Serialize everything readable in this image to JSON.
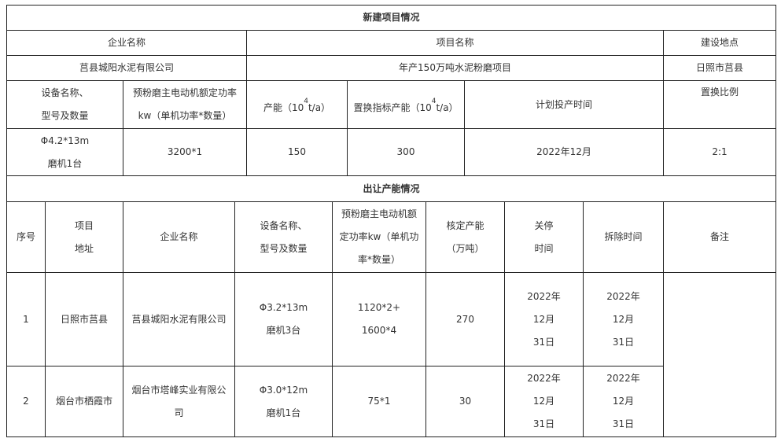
{
  "new_project": {
    "title": "新建项目情况",
    "headers": {
      "company": "企业名称",
      "project": "项目名称",
      "location": "建设地点"
    },
    "values": {
      "company": "莒县城阳水泥有限公司",
      "project": "年产150万吨水泥粉磨项目",
      "location": "日照市莒县"
    },
    "detail_headers": {
      "equipment_1": "设备名称、",
      "equipment_2": "型号及数量",
      "power_1": "预粉磨主电动机额定功率",
      "power_2": "kw（单机功率*数量）",
      "capacity_pre": "产能（10",
      "capacity_exp": "4",
      "capacity_post": "t/a）",
      "replace_pre": "置换指标产能（10",
      "replace_exp": "4",
      "replace_post": "t/a）",
      "plan_time": "计划投产时间",
      "ratio": "置换比例"
    },
    "detail_values": {
      "equipment_1": "Φ4.2*13m",
      "equipment_2": "磨机1台",
      "power": "3200*1",
      "capacity": "150",
      "replace": "300",
      "plan_time": "2022年12月",
      "ratio": "2:1"
    }
  },
  "transfer": {
    "title": "出让产能情况",
    "headers": {
      "no": "序号",
      "addr_1": "项目",
      "addr_2": "地址",
      "company": "企业名称",
      "equip_1": "设备名称、",
      "equip_2": "型号及数量",
      "power_1": "预粉磨主电动机额",
      "power_2": "定功率kw（单机功",
      "power_3": "率*数量）",
      "cap_1": "核定产能",
      "cap_2": "（万吨）",
      "stop_1": "关停",
      "stop_2": "时间",
      "demolish": "拆除时间",
      "remark": "备注"
    },
    "rows": [
      {
        "no": "1",
        "addr": "日照市莒县",
        "company": "莒县城阳水泥有限公司",
        "company_2": "",
        "equip_1": "Φ3.2*13m",
        "equip_2": "磨机3台",
        "power_1": "1120*2+",
        "power_2": "1600*4",
        "cap": "270",
        "stop": [
          "2022年",
          "12月",
          "31日"
        ],
        "demolish": [
          "2022年",
          "12月",
          "31日"
        ]
      },
      {
        "no": "2",
        "addr": "烟台市栖霞市",
        "company": "烟台市塔峰实业有限公",
        "company_2": "司",
        "equip_1": "Φ3.0*12m",
        "equip_2": "磨机1台",
        "power_1": "75*1",
        "power_2": "",
        "cap": "30",
        "stop": [
          "2022年",
          "12月",
          "31日"
        ],
        "demolish": [
          "2022年",
          "12月",
          "31日"
        ]
      }
    ],
    "remark": ""
  }
}
